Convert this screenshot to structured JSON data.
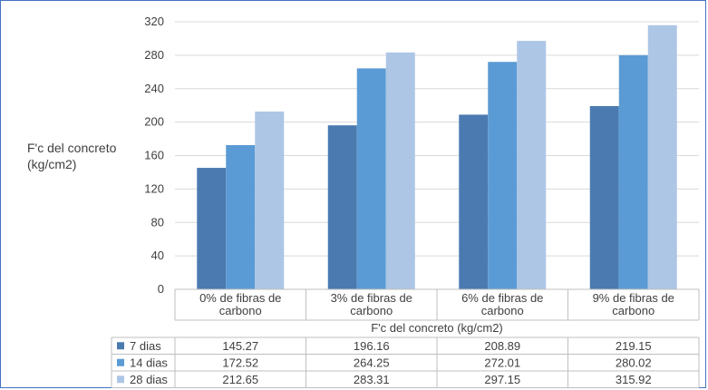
{
  "chart_data": {
    "type": "bar",
    "ylabel_lines": [
      "F'c del concreto",
      "(kg/cm2)"
    ],
    "xlabel": "F'c del concreto (kg/cm2)",
    "categories": [
      [
        "0% de fibras de",
        "carbono"
      ],
      [
        "3% de fibras de",
        "carbono"
      ],
      [
        "6% de fibras de",
        "carbono"
      ],
      [
        "9% de fibras de",
        "carbono"
      ]
    ],
    "yticks": [
      "0",
      "40",
      "80",
      "120",
      "160",
      "200",
      "240",
      "280",
      "320"
    ],
    "ylim": [
      0,
      320
    ],
    "grid": true,
    "legend_placement": "data-table",
    "series": [
      {
        "name": "7 dias",
        "color": "#4a7ab0",
        "values": [
          145.27,
          196.16,
          208.89,
          219.15
        ],
        "labels": [
          "145.27",
          "196.16",
          "208.89",
          "219.15"
        ]
      },
      {
        "name": "14 dias",
        "color": "#5b9bd5",
        "values": [
          172.52,
          264.25,
          272.01,
          280.02
        ],
        "labels": [
          "172.52",
          "264.25",
          "272.01",
          "280.02"
        ]
      },
      {
        "name": "28 dias",
        "color": "#adc6e6",
        "values": [
          212.65,
          283.31,
          297.15,
          315.92
        ],
        "labels": [
          "212.65",
          "283.31",
          "297.15",
          "315.92"
        ]
      }
    ]
  }
}
